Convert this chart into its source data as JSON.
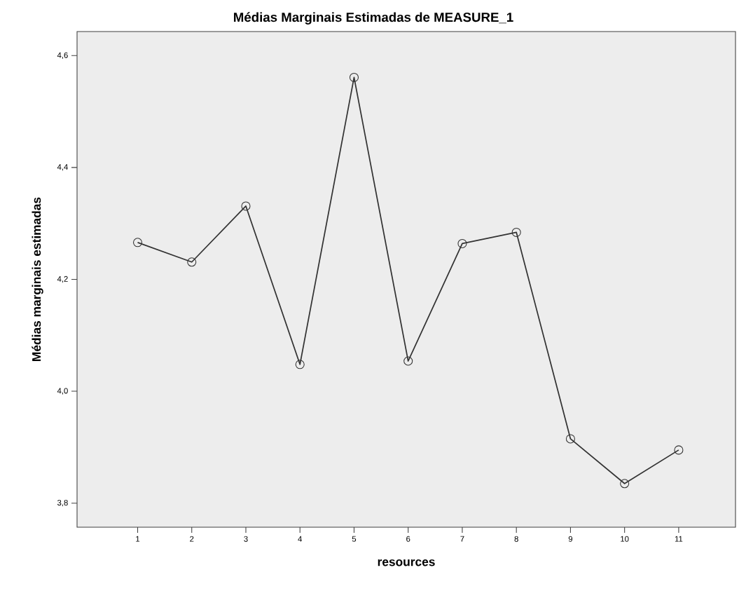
{
  "chart_data": {
    "type": "line",
    "title": "Médias Marginais Estimadas de MEASURE_1",
    "xlabel": "resources",
    "ylabel": "Médias marginais estimadas",
    "categories": [
      "1",
      "2",
      "3",
      "4",
      "5",
      "6",
      "7",
      "8",
      "9",
      "10",
      "11"
    ],
    "series": [
      {
        "color": "#333333",
        "values": [
          4.266,
          4.231,
          4.331,
          4.048,
          4.561,
          4.054,
          4.264,
          4.284,
          3.915,
          3.835,
          3.895
        ]
      }
    ],
    "ylim": [
      3.757,
      4.643
    ],
    "yticks": [
      {
        "value": 3.8,
        "label": "3,8"
      },
      {
        "value": 4.0,
        "label": "4,0"
      },
      {
        "value": 4.2,
        "label": "4,2"
      },
      {
        "value": 4.4,
        "label": "4,4"
      },
      {
        "value": 4.6,
        "label": "4,6"
      }
    ],
    "marker": "circle",
    "line_style": "solid",
    "grid": false
  }
}
